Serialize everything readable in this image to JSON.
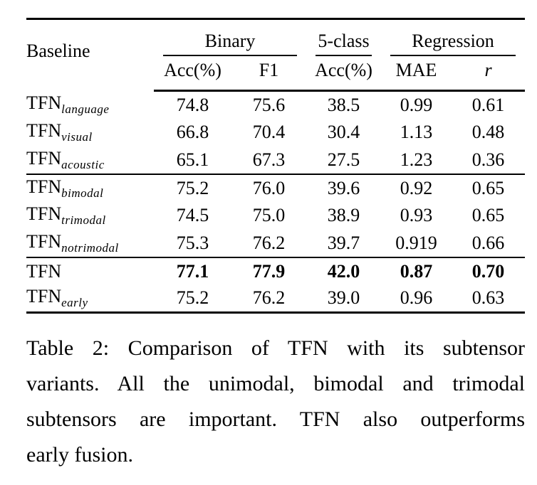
{
  "page": {
    "background_color": "#ffffff",
    "text_color": "#000000"
  },
  "table": {
    "corner_header": "Baseline",
    "column_groups": [
      {
        "label": "Binary",
        "span": 2
      },
      {
        "label": "5-class",
        "span": 1
      },
      {
        "label": "Regression",
        "span": 2
      }
    ],
    "sub_headers": [
      "Acc(%)",
      "F1",
      "Acc(%)",
      "MAE",
      "r"
    ],
    "sections": [
      {
        "rows": [
          {
            "base": "TFN",
            "subscript": "language",
            "values": [
              "74.8",
              "75.6",
              "38.5",
              "0.99",
              "0.61"
            ],
            "bold": false
          },
          {
            "base": "TFN",
            "subscript": "visual",
            "values": [
              "66.8",
              "70.4",
              "30.4",
              "1.13",
              "0.48"
            ],
            "bold": false
          },
          {
            "base": "TFN",
            "subscript": "acoustic",
            "values": [
              "65.1",
              "67.3",
              "27.5",
              "1.23",
              "0.36"
            ],
            "bold": false
          }
        ]
      },
      {
        "rows": [
          {
            "base": "TFN",
            "subscript": "bimodal",
            "values": [
              "75.2",
              "76.0",
              "39.6",
              "0.92",
              "0.65"
            ],
            "bold": false
          },
          {
            "base": "TFN",
            "subscript": "trimodal",
            "values": [
              "74.5",
              "75.0",
              "38.9",
              "0.93",
              "0.65"
            ],
            "bold": false
          },
          {
            "base": "TFN",
            "subscript": "notrimodal",
            "values": [
              "75.3",
              "76.2",
              "39.7",
              "0.919",
              "0.66"
            ],
            "bold": false
          }
        ]
      },
      {
        "rows": [
          {
            "base": "TFN",
            "subscript": "",
            "values": [
              "77.1",
              "77.9",
              "42.0",
              "0.87",
              "0.70"
            ],
            "bold": true
          },
          {
            "base": "TFN",
            "subscript": "early",
            "values": [
              "75.2",
              "76.2",
              "39.0",
              "0.96",
              "0.63"
            ],
            "bold": false
          }
        ]
      }
    ]
  },
  "caption": {
    "lines": [
      "Table 2: Comparison of TFN with its subtensor",
      "variants. All the unimodal, bimodal and trimodal",
      "subtensors are important. TFN also outperforms",
      "early fusion."
    ],
    "full_text": "Table 2: Comparison of TFN with its subtensor variants. All the unimodal, bimodal and trimodal subtensors are important. TFN also outperforms early fusion."
  }
}
